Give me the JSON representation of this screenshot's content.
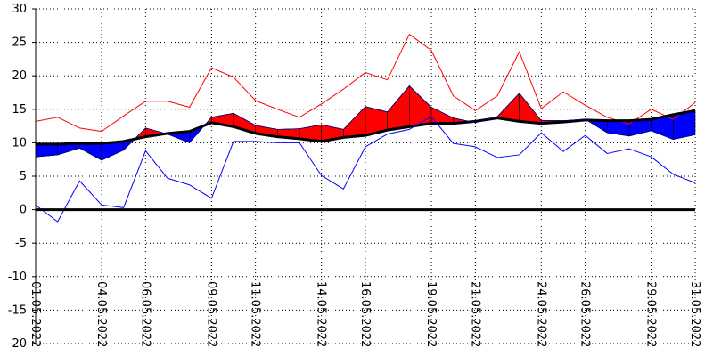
{
  "chart_data": {
    "type": "line",
    "title": "",
    "xlabel": "",
    "ylabel": "",
    "ylim": [
      -20,
      30
    ],
    "y_ticks": [
      30,
      25,
      20,
      15,
      10,
      5,
      0,
      -5,
      -10,
      -15,
      -20
    ],
    "x_tick_labels": [
      "01.05.2022",
      "04.05.2022",
      "06.05.2022",
      "09.05.2022",
      "11.05.2022",
      "14.05.2022",
      "16.05.2022",
      "19.05.2022",
      "21.05.2022",
      "24.05.2022",
      "26.05.2022",
      "29.05.2022",
      "31.05.2022"
    ],
    "x_tick_days": [
      1,
      4,
      6,
      9,
      11,
      14,
      16,
      19,
      21,
      24,
      26,
      29,
      31
    ],
    "grid": true,
    "zero_line": true,
    "days": [
      1,
      2,
      3,
      4,
      5,
      6,
      7,
      8,
      9,
      10,
      11,
      12,
      13,
      14,
      15,
      16,
      17,
      18,
      19,
      20,
      21,
      22,
      23,
      24,
      25,
      26,
      27,
      28,
      29,
      30,
      31
    ],
    "series": [
      {
        "color": "#ff0000",
        "values": [
          13.2,
          13.8,
          12.2,
          11.7,
          14.0,
          16.2,
          16.2,
          15.3,
          21.2,
          19.8,
          16.3,
          15.0,
          13.8,
          15.8,
          18.0,
          20.5,
          19.4,
          26.2,
          23.8,
          17.0,
          14.8,
          17.0,
          23.6,
          15.1,
          17.6,
          15.6,
          13.8,
          12.8,
          15.0,
          13.5,
          16.0
        ]
      },
      {
        "color": "#000000",
        "values": [
          9.8,
          9.8,
          9.9,
          9.9,
          10.2,
          10.9,
          11.4,
          11.7,
          13.0,
          12.4,
          11.4,
          10.9,
          10.6,
          10.2,
          10.8,
          11.1,
          11.9,
          12.4,
          12.9,
          12.9,
          13.2,
          13.7,
          13.2,
          12.9,
          13.1,
          13.4,
          13.3,
          13.3,
          13.5,
          14.2,
          14.8
        ]
      },
      {
        "color": "#000080",
        "values": [
          7.9,
          8.2,
          9.2,
          7.4,
          8.9,
          12.2,
          11.3,
          10.0,
          13.8,
          14.4,
          12.6,
          12.0,
          12.1,
          12.7,
          12.0,
          15.4,
          14.6,
          18.5,
          15.3,
          13.7,
          13.0,
          13.9,
          17.4,
          13.3,
          13.3,
          13.5,
          11.5,
          11.0,
          11.8,
          10.5,
          11.2
        ]
      },
      {
        "color": "#0000ff",
        "values": [
          0.7,
          -1.8,
          4.3,
          0.7,
          0.3,
          8.8,
          4.7,
          3.7,
          1.7,
          10.2,
          10.2,
          10.0,
          10.0,
          5.1,
          3.1,
          9.4,
          11.3,
          12.0,
          13.9,
          9.9,
          9.4,
          7.8,
          8.2,
          11.5,
          8.7,
          11.1,
          8.4,
          9.1,
          7.9,
          5.3,
          4.0
        ]
      }
    ],
    "fill_above_color": "#ff0000",
    "fill_below_color": "#0000ff"
  }
}
